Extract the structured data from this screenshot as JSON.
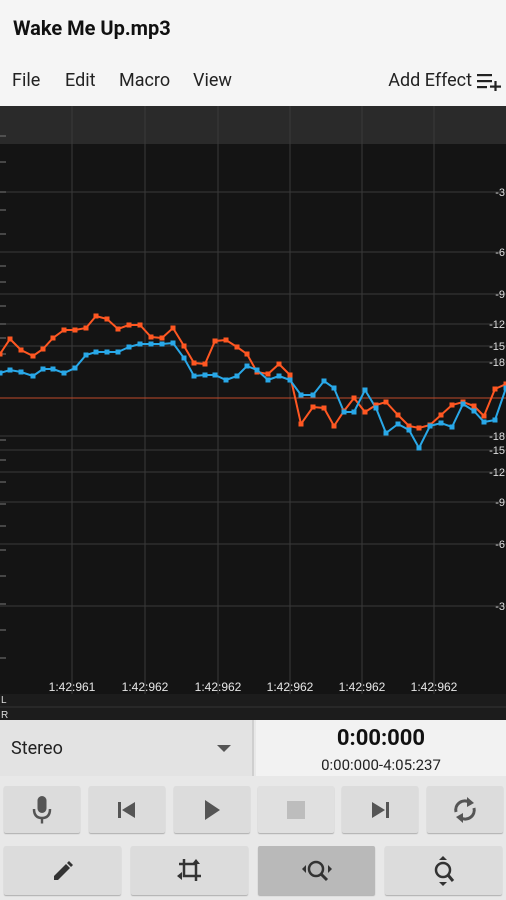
{
  "app": {
    "title": "Wake Me Up.mp3"
  },
  "menu": {
    "file": "File",
    "edit": "Edit",
    "macro": "Macro",
    "view": "View",
    "add_effect": "Add Effect"
  },
  "waveform": {
    "db_labels_right": [
      "-3",
      "-6",
      "-9",
      "-12",
      "-15",
      "-18",
      "-18",
      "-15",
      "-12",
      "-9",
      "-6",
      "-3"
    ],
    "time_labels": [
      "1:42:961",
      "1:42:962",
      "1:42:962",
      "1:42:962",
      "1:42:962",
      "1:42:962"
    ],
    "channel_labels": [
      "L",
      "R"
    ],
    "colors": {
      "left_channel": "#ff5722",
      "right_channel": "#29a8e8",
      "background": "#141414",
      "grid": "#3a3a3a"
    }
  },
  "transport": {
    "channel_select": "Stereo",
    "current_time": "0:00:000",
    "range": "0:00:000-4:05:237"
  },
  "icons": {
    "add_effect": "playlist-add-icon",
    "record": "microphone-icon",
    "skip_start": "skip-previous-icon",
    "play": "play-icon",
    "stop": "stop-icon",
    "skip_end": "skip-next-icon",
    "loop": "repeat-icon",
    "pencil": "pencil-icon",
    "crop": "crop-icon",
    "zoom_horizontal": "zoom-horizontal-icon",
    "zoom_vertical": "zoom-vertical-icon"
  }
}
